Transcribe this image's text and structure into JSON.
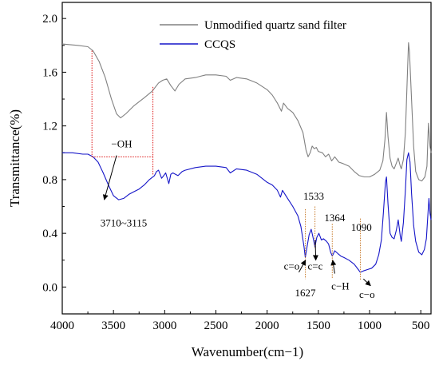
{
  "chart_data": {
    "type": "line",
    "xlabel": "Wavenumber(cm−1)",
    "ylabel": "Transmittance(%)",
    "xlim": [
      4000,
      400
    ],
    "ylim": [
      -0.2,
      2.12
    ],
    "x_ticks": [
      4000,
      3500,
      3000,
      2500,
      2000,
      1500,
      1000,
      500
    ],
    "y_ticks": [
      0.0,
      0.4,
      0.8,
      1.2,
      1.6,
      2.0
    ],
    "x_tick_labels": [
      "4000",
      "3500",
      "3000",
      "2500",
      "2000",
      "1500",
      "1000",
      "500"
    ],
    "y_tick_labels": [
      "0.0",
      "0.4",
      "0.8",
      "1.2",
      "1.6",
      "2.0"
    ],
    "grid": false,
    "legend_position": "top-right",
    "series": [
      {
        "name": "Unmodified quartz sand filter",
        "color": "#808080",
        "points": [
          [
            4000,
            1.81
          ],
          [
            3850,
            1.8
          ],
          [
            3750,
            1.79
          ],
          [
            3700,
            1.76
          ],
          [
            3640,
            1.68
          ],
          [
            3580,
            1.56
          ],
          [
            3520,
            1.4
          ],
          [
            3470,
            1.29
          ],
          [
            3430,
            1.26
          ],
          [
            3380,
            1.29
          ],
          [
            3300,
            1.35
          ],
          [
            3200,
            1.41
          ],
          [
            3120,
            1.46
          ],
          [
            3060,
            1.52
          ],
          [
            3020,
            1.54
          ],
          [
            2980,
            1.55
          ],
          [
            2940,
            1.5
          ],
          [
            2900,
            1.46
          ],
          [
            2860,
            1.51
          ],
          [
            2800,
            1.55
          ],
          [
            2700,
            1.56
          ],
          [
            2600,
            1.58
          ],
          [
            2500,
            1.58
          ],
          [
            2400,
            1.57
          ],
          [
            2360,
            1.54
          ],
          [
            2300,
            1.56
          ],
          [
            2200,
            1.55
          ],
          [
            2100,
            1.52
          ],
          [
            2000,
            1.47
          ],
          [
            1950,
            1.43
          ],
          [
            1900,
            1.37
          ],
          [
            1860,
            1.31
          ],
          [
            1840,
            1.37
          ],
          [
            1800,
            1.33
          ],
          [
            1750,
            1.3
          ],
          [
            1700,
            1.24
          ],
          [
            1650,
            1.15
          ],
          [
            1620,
            1.02
          ],
          [
            1600,
            0.97
          ],
          [
            1580,
            1.0
          ],
          [
            1560,
            1.05
          ],
          [
            1540,
            1.03
          ],
          [
            1520,
            1.04
          ],
          [
            1500,
            1.01
          ],
          [
            1460,
            1.0
          ],
          [
            1430,
            0.97
          ],
          [
            1400,
            0.99
          ],
          [
            1370,
            0.94
          ],
          [
            1340,
            0.97
          ],
          [
            1300,
            0.93
          ],
          [
            1260,
            0.92
          ],
          [
            1200,
            0.9
          ],
          [
            1150,
            0.86
          ],
          [
            1100,
            0.83
          ],
          [
            1050,
            0.82
          ],
          [
            1000,
            0.82
          ],
          [
            950,
            0.84
          ],
          [
            900,
            0.87
          ],
          [
            870,
            0.94
          ],
          [
            850,
            1.1
          ],
          [
            835,
            1.3
          ],
          [
            820,
            1.12
          ],
          [
            800,
            0.96
          ],
          [
            780,
            0.9
          ],
          [
            760,
            0.88
          ],
          [
            740,
            0.92
          ],
          [
            720,
            0.96
          ],
          [
            700,
            0.9
          ],
          [
            690,
            0.88
          ],
          [
            670,
            0.95
          ],
          [
            650,
            1.15
          ],
          [
            630,
            1.6
          ],
          [
            620,
            1.82
          ],
          [
            610,
            1.75
          ],
          [
            590,
            1.4
          ],
          [
            570,
            1.05
          ],
          [
            550,
            0.86
          ],
          [
            520,
            0.8
          ],
          [
            490,
            0.79
          ],
          [
            460,
            0.82
          ],
          [
            440,
            0.9
          ],
          [
            425,
            1.22
          ],
          [
            410,
            1.05
          ],
          [
            400,
            1.0
          ]
        ]
      },
      {
        "name": "CCQS",
        "color": "#1515c8",
        "points": [
          [
            4000,
            1.0
          ],
          [
            3900,
            1.0
          ],
          [
            3800,
            0.99
          ],
          [
            3750,
            0.99
          ],
          [
            3700,
            0.97
          ],
          [
            3650,
            0.93
          ],
          [
            3600,
            0.85
          ],
          [
            3550,
            0.76
          ],
          [
            3500,
            0.68
          ],
          [
            3450,
            0.65
          ],
          [
            3400,
            0.66
          ],
          [
            3350,
            0.69
          ],
          [
            3300,
            0.71
          ],
          [
            3250,
            0.73
          ],
          [
            3200,
            0.76
          ],
          [
            3150,
            0.8
          ],
          [
            3100,
            0.83
          ],
          [
            3080,
            0.86
          ],
          [
            3060,
            0.87
          ],
          [
            3030,
            0.81
          ],
          [
            3010,
            0.83
          ],
          [
            2990,
            0.85
          ],
          [
            2960,
            0.77
          ],
          [
            2940,
            0.84
          ],
          [
            2920,
            0.85
          ],
          [
            2870,
            0.83
          ],
          [
            2830,
            0.86
          ],
          [
            2800,
            0.87
          ],
          [
            2700,
            0.89
          ],
          [
            2600,
            0.9
          ],
          [
            2500,
            0.9
          ],
          [
            2400,
            0.89
          ],
          [
            2360,
            0.85
          ],
          [
            2300,
            0.88
          ],
          [
            2200,
            0.87
          ],
          [
            2100,
            0.84
          ],
          [
            2000,
            0.78
          ],
          [
            1950,
            0.76
          ],
          [
            1900,
            0.72
          ],
          [
            1870,
            0.67
          ],
          [
            1850,
            0.72
          ],
          [
            1800,
            0.66
          ],
          [
            1750,
            0.6
          ],
          [
            1700,
            0.53
          ],
          [
            1670,
            0.45
          ],
          [
            1640,
            0.3
          ],
          [
            1627,
            0.22
          ],
          [
            1610,
            0.3
          ],
          [
            1590,
            0.39
          ],
          [
            1570,
            0.43
          ],
          [
            1555,
            0.38
          ],
          [
            1533,
            0.3
          ],
          [
            1515,
            0.37
          ],
          [
            1495,
            0.4
          ],
          [
            1470,
            0.35
          ],
          [
            1450,
            0.36
          ],
          [
            1420,
            0.34
          ],
          [
            1400,
            0.32
          ],
          [
            1380,
            0.26
          ],
          [
            1364,
            0.23
          ],
          [
            1340,
            0.27
          ],
          [
            1310,
            0.25
          ],
          [
            1280,
            0.23
          ],
          [
            1250,
            0.22
          ],
          [
            1200,
            0.2
          ],
          [
            1150,
            0.17
          ],
          [
            1110,
            0.13
          ],
          [
            1090,
            0.11
          ],
          [
            1060,
            0.12
          ],
          [
            1020,
            0.13
          ],
          [
            980,
            0.14
          ],
          [
            940,
            0.17
          ],
          [
            910,
            0.24
          ],
          [
            885,
            0.35
          ],
          [
            865,
            0.55
          ],
          [
            845,
            0.78
          ],
          [
            835,
            0.82
          ],
          [
            820,
            0.62
          ],
          [
            800,
            0.4
          ],
          [
            780,
            0.37
          ],
          [
            760,
            0.36
          ],
          [
            740,
            0.42
          ],
          [
            720,
            0.5
          ],
          [
            700,
            0.38
          ],
          [
            690,
            0.34
          ],
          [
            670,
            0.48
          ],
          [
            650,
            0.72
          ],
          [
            635,
            0.95
          ],
          [
            620,
            1.0
          ],
          [
            605,
            0.93
          ],
          [
            590,
            0.7
          ],
          [
            570,
            0.46
          ],
          [
            550,
            0.34
          ],
          [
            520,
            0.26
          ],
          [
            490,
            0.24
          ],
          [
            465,
            0.28
          ],
          [
            445,
            0.36
          ],
          [
            430,
            0.55
          ],
          [
            420,
            0.66
          ],
          [
            410,
            0.55
          ],
          [
            400,
            0.5
          ]
        ]
      }
    ],
    "annotations": [
      {
        "id": "oh",
        "label": "−OH",
        "x": 3420,
        "y": 1.04
      },
      {
        "id": "oh-range",
        "label": "3710~3115",
        "x": 3400,
        "y": 0.45
      },
      {
        "id": "co-double",
        "label": "c=o",
        "x": 1760,
        "y": 0.13
      },
      {
        "id": "cc-double",
        "label": "c=c",
        "x": 1530,
        "y": 0.13
      },
      {
        "id": "ch",
        "label": "c−H",
        "x": 1285,
        "y": -0.02
      },
      {
        "id": "co-single",
        "label": "c−o",
        "x": 1025,
        "y": -0.08
      },
      {
        "id": "wn-1627",
        "label": "1627",
        "x": 1627,
        "y": -0.07
      },
      {
        "id": "wn-1533",
        "label": "1533",
        "x": 1545,
        "y": 0.65
      },
      {
        "id": "wn-1364",
        "label": "1364",
        "x": 1340,
        "y": 0.49
      },
      {
        "id": "wn-1090",
        "label": "1090",
        "x": 1080,
        "y": 0.42
      }
    ]
  }
}
